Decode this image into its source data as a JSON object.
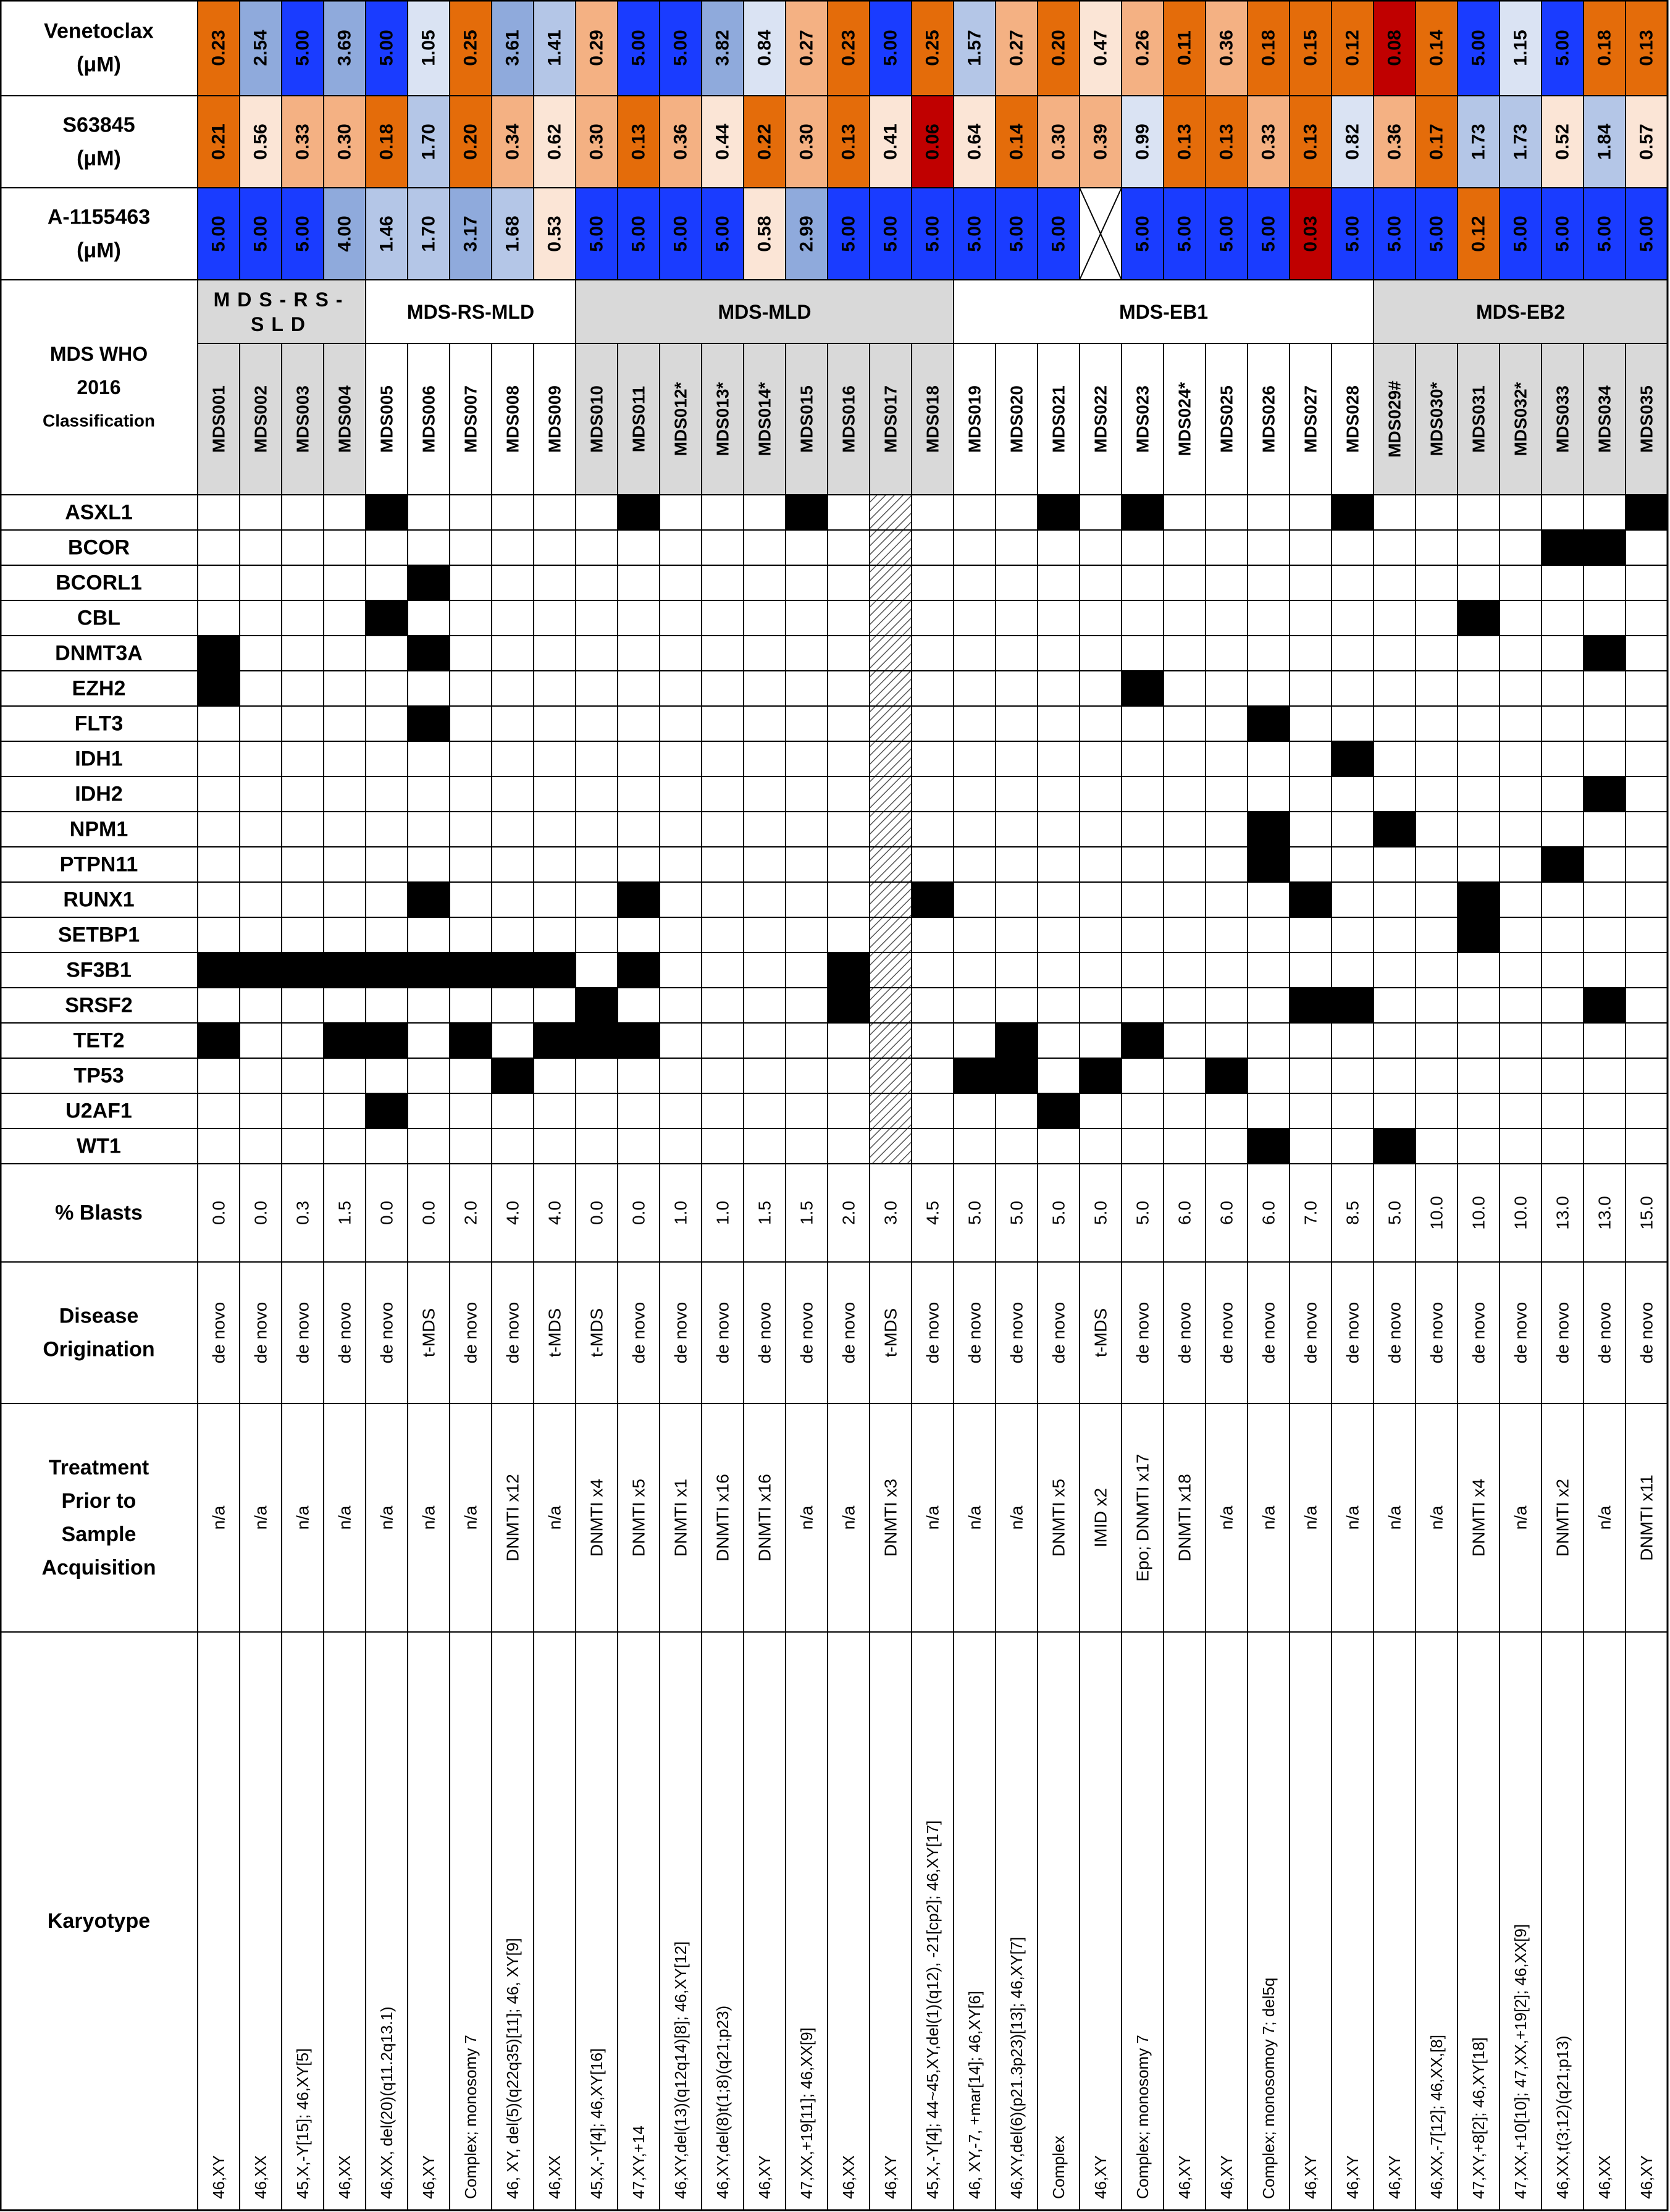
{
  "drugs": [
    {
      "name": "Venetoclax",
      "unit": "(μM)",
      "values": [
        "0.23",
        "2.54",
        "5.00",
        "3.69",
        "5.00",
        "1.05",
        "0.25",
        "3.61",
        "1.41",
        "0.29",
        "5.00",
        "5.00",
        "3.82",
        "0.84",
        "0.27",
        "0.23",
        "5.00",
        "0.25",
        "1.57",
        "0.27",
        "0.20",
        "0.47",
        "0.26",
        "0.11",
        "0.36",
        "0.18",
        "0.15",
        "0.12",
        "0.08",
        "0.14",
        "5.00",
        "1.15",
        "5.00",
        "0.18",
        "0.13"
      ]
    },
    {
      "name": "S63845",
      "unit": "(μM)",
      "values": [
        "0.21",
        "0.56",
        "0.33",
        "0.30",
        "0.18",
        "1.70",
        "0.20",
        "0.34",
        "0.62",
        "0.30",
        "0.13",
        "0.36",
        "0.44",
        "0.22",
        "0.30",
        "0.13",
        "0.41",
        "0.06",
        "0.64",
        "0.14",
        "0.30",
        "0.39",
        "0.99",
        "0.13",
        "0.13",
        "0.33",
        "0.13",
        "0.82",
        "0.36",
        "0.17",
        "1.73",
        "1.73",
        "0.52",
        "1.84",
        "0.57"
      ]
    },
    {
      "name": "A-1155463",
      "unit": "(μM)",
      "values": [
        "5.00",
        "5.00",
        "5.00",
        "4.00",
        "1.46",
        "1.70",
        "3.17",
        "1.68",
        "0.53",
        "5.00",
        "5.00",
        "5.00",
        "5.00",
        "0.58",
        "2.99",
        "5.00",
        "5.00",
        "5.00",
        "5.00",
        "5.00",
        "5.00",
        null,
        "5.00",
        "5.00",
        "5.00",
        "5.00",
        "0.03",
        "5.00",
        "5.00",
        "5.00",
        "0.12",
        "5.00",
        "5.00",
        "5.00",
        "5.00"
      ]
    }
  ],
  "classification": {
    "label_lines": [
      "MDS WHO",
      "2016",
      "Classification"
    ],
    "groups": [
      "MDS-RS-SLD",
      "MDS-RS-MLD",
      "MDS-MLD",
      "MDS-EB1",
      "MDS-EB2"
    ],
    "samples": [
      "MDS001",
      "MDS002",
      "MDS003",
      "MDS004",
      "MDS005",
      "MDS006",
      "MDS007",
      "MDS008",
      "MDS009",
      "MDS010",
      "MDS011",
      "MDS012*",
      "MDS013*",
      "MDS014*",
      "MDS015",
      "MDS016",
      "MDS017",
      "MDS018",
      "MDS019",
      "MDS020",
      "MDS021",
      "MDS022",
      "MDS023",
      "MDS024*",
      "MDS025",
      "MDS026",
      "MDS027",
      "MDS028",
      "MDS029#",
      "MDS030*",
      "MDS031",
      "MDS032*",
      "MDS033",
      "MDS034",
      "MDS035"
    ]
  },
  "genes": [
    {
      "name": "ASXL1",
      "mutated": [
        0,
        0,
        0,
        0,
        1,
        0,
        0,
        0,
        0,
        0,
        1,
        0,
        0,
        0,
        1,
        0,
        null,
        0,
        0,
        0,
        1,
        0,
        1,
        0,
        0,
        0,
        0,
        1,
        0,
        0,
        0,
        0,
        0,
        0,
        1
      ]
    },
    {
      "name": "BCOR",
      "mutated": [
        0,
        0,
        0,
        0,
        0,
        0,
        0,
        0,
        0,
        0,
        0,
        0,
        0,
        0,
        0,
        0,
        null,
        0,
        0,
        0,
        0,
        0,
        0,
        0,
        0,
        0,
        0,
        0,
        0,
        0,
        0,
        0,
        1,
        1,
        0
      ]
    },
    {
      "name": "BCORL1",
      "mutated": [
        0,
        0,
        0,
        0,
        0,
        1,
        0,
        0,
        0,
        0,
        0,
        0,
        0,
        0,
        0,
        0,
        null,
        0,
        0,
        0,
        0,
        0,
        0,
        0,
        0,
        0,
        0,
        0,
        0,
        0,
        0,
        0,
        0,
        0,
        0
      ]
    },
    {
      "name": "CBL",
      "mutated": [
        0,
        0,
        0,
        0,
        1,
        0,
        0,
        0,
        0,
        0,
        0,
        0,
        0,
        0,
        0,
        0,
        null,
        0,
        0,
        0,
        0,
        0,
        0,
        0,
        0,
        0,
        0,
        0,
        0,
        0,
        1,
        0,
        0,
        0,
        0
      ]
    },
    {
      "name": "DNMT3A",
      "mutated": [
        1,
        0,
        0,
        0,
        0,
        1,
        0,
        0,
        0,
        0,
        0,
        0,
        0,
        0,
        0,
        0,
        null,
        0,
        0,
        0,
        0,
        0,
        0,
        0,
        0,
        0,
        0,
        0,
        0,
        0,
        0,
        0,
        0,
        1,
        0
      ]
    },
    {
      "name": "EZH2",
      "mutated": [
        1,
        0,
        0,
        0,
        0,
        0,
        0,
        0,
        0,
        0,
        0,
        0,
        0,
        0,
        0,
        0,
        null,
        0,
        0,
        0,
        0,
        0,
        1,
        0,
        0,
        0,
        0,
        0,
        0,
        0,
        0,
        0,
        0,
        0,
        0
      ]
    },
    {
      "name": "FLT3",
      "mutated": [
        0,
        0,
        0,
        0,
        0,
        1,
        0,
        0,
        0,
        0,
        0,
        0,
        0,
        0,
        0,
        0,
        null,
        0,
        0,
        0,
        0,
        0,
        0,
        0,
        0,
        1,
        0,
        0,
        0,
        0,
        0,
        0,
        0,
        0,
        0
      ]
    },
    {
      "name": "IDH1",
      "mutated": [
        0,
        0,
        0,
        0,
        0,
        0,
        0,
        0,
        0,
        0,
        0,
        0,
        0,
        0,
        0,
        0,
        null,
        0,
        0,
        0,
        0,
        0,
        0,
        0,
        0,
        0,
        0,
        1,
        0,
        0,
        0,
        0,
        0,
        0,
        0
      ]
    },
    {
      "name": "IDH2",
      "mutated": [
        0,
        0,
        0,
        0,
        0,
        0,
        0,
        0,
        0,
        0,
        0,
        0,
        0,
        0,
        0,
        0,
        null,
        0,
        0,
        0,
        0,
        0,
        0,
        0,
        0,
        0,
        0,
        0,
        0,
        0,
        0,
        0,
        0,
        1,
        0
      ]
    },
    {
      "name": "NPM1",
      "mutated": [
        0,
        0,
        0,
        0,
        0,
        0,
        0,
        0,
        0,
        0,
        0,
        0,
        0,
        0,
        0,
        0,
        null,
        0,
        0,
        0,
        0,
        0,
        0,
        0,
        0,
        1,
        0,
        0,
        1,
        0,
        0,
        0,
        0,
        0,
        0
      ]
    },
    {
      "name": "PTPN11",
      "mutated": [
        0,
        0,
        0,
        0,
        0,
        0,
        0,
        0,
        0,
        0,
        0,
        0,
        0,
        0,
        0,
        0,
        null,
        0,
        0,
        0,
        0,
        0,
        0,
        0,
        0,
        1,
        0,
        0,
        0,
        0,
        0,
        0,
        1,
        0,
        0
      ]
    },
    {
      "name": "RUNX1",
      "mutated": [
        0,
        0,
        0,
        0,
        0,
        1,
        0,
        0,
        0,
        0,
        1,
        0,
        0,
        0,
        0,
        0,
        null,
        1,
        0,
        0,
        0,
        0,
        0,
        0,
        0,
        0,
        1,
        0,
        0,
        0,
        1,
        0,
        0,
        0,
        0
      ]
    },
    {
      "name": "SETBP1",
      "mutated": [
        0,
        0,
        0,
        0,
        0,
        0,
        0,
        0,
        0,
        0,
        0,
        0,
        0,
        0,
        0,
        0,
        null,
        0,
        0,
        0,
        0,
        0,
        0,
        0,
        0,
        0,
        0,
        0,
        0,
        0,
        1,
        0,
        0,
        0,
        0
      ]
    },
    {
      "name": "SF3B1",
      "mutated": [
        1,
        1,
        1,
        1,
        1,
        1,
        1,
        1,
        1,
        0,
        1,
        0,
        0,
        0,
        0,
        1,
        null,
        0,
        0,
        0,
        0,
        0,
        0,
        0,
        0,
        0,
        0,
        0,
        0,
        0,
        0,
        0,
        0,
        0,
        0
      ]
    },
    {
      "name": "SRSF2",
      "mutated": [
        0,
        0,
        0,
        0,
        0,
        0,
        0,
        0,
        0,
        1,
        0,
        0,
        0,
        0,
        0,
        1,
        null,
        0,
        0,
        0,
        0,
        0,
        0,
        0,
        0,
        0,
        1,
        1,
        0,
        0,
        0,
        0,
        0,
        1,
        0
      ]
    },
    {
      "name": "TET2",
      "mutated": [
        1,
        0,
        0,
        1,
        1,
        0,
        1,
        0,
        1,
        1,
        1,
        0,
        0,
        0,
        0,
        0,
        null,
        0,
        0,
        1,
        0,
        0,
        1,
        0,
        0,
        0,
        0,
        0,
        0,
        0,
        0,
        0,
        0,
        0,
        0
      ]
    },
    {
      "name": "TP53",
      "mutated": [
        0,
        0,
        0,
        0,
        0,
        0,
        0,
        1,
        0,
        0,
        0,
        0,
        0,
        0,
        0,
        0,
        null,
        0,
        1,
        1,
        0,
        1,
        0,
        0,
        1,
        0,
        0,
        0,
        0,
        0,
        0,
        0,
        0,
        0,
        0
      ]
    },
    {
      "name": "U2AF1",
      "mutated": [
        0,
        0,
        0,
        0,
        1,
        0,
        0,
        0,
        0,
        0,
        0,
        0,
        0,
        0,
        0,
        0,
        null,
        0,
        0,
        0,
        1,
        0,
        0,
        0,
        0,
        0,
        0,
        0,
        0,
        0,
        0,
        0,
        0,
        0,
        0
      ]
    },
    {
      "name": "WT1",
      "mutated": [
        0,
        0,
        0,
        0,
        0,
        0,
        0,
        0,
        0,
        0,
        0,
        0,
        0,
        0,
        0,
        0,
        null,
        0,
        0,
        0,
        0,
        0,
        0,
        0,
        0,
        1,
        0,
        0,
        1,
        0,
        0,
        0,
        0,
        0,
        0
      ]
    }
  ],
  "blasts": {
    "label": "% Blasts",
    "values": [
      "0.0",
      "0.0",
      "0.3",
      "1.5",
      "0.0",
      "0.0",
      "2.0",
      "4.0",
      "4.0",
      "0.0",
      "0.0",
      "1.0",
      "1.0",
      "1.5",
      "1.5",
      "2.0",
      "3.0",
      "4.5",
      "5.0",
      "5.0",
      "5.0",
      "5.0",
      "5.0",
      "6.0",
      "6.0",
      "6.0",
      "7.0",
      "8.5",
      "5.0",
      "10.0",
      "10.0",
      "10.0",
      "13.0",
      "13.0",
      "15.0"
    ]
  },
  "origination": {
    "label_lines": [
      "Disease",
      "Origination"
    ],
    "values": [
      "de novo",
      "de novo",
      "de novo",
      "de novo",
      "de novo",
      "t-MDS",
      "de novo",
      "de novo",
      "t-MDS",
      "t-MDS",
      "de novo",
      "de novo",
      "de novo",
      "de novo",
      "de novo",
      "de novo",
      "t-MDS",
      "de novo",
      "de novo",
      "de novo",
      "de novo",
      "t-MDS",
      "de novo",
      "de novo",
      "de novo",
      "de novo",
      "de novo",
      "de novo",
      "de novo",
      "de novo",
      "de novo",
      "de novo",
      "de novo",
      "de novo",
      "de novo"
    ]
  },
  "treatment": {
    "label_lines": [
      "Treatment",
      "Prior to",
      "Sample",
      "Acquisition"
    ],
    "values": [
      "n/a",
      "n/a",
      "n/a",
      "n/a",
      "n/a",
      "n/a",
      "n/a",
      "DNMTI x12",
      "n/a",
      "DNMTI x4",
      "DNMTI x5",
      "DNMTI x1",
      "DNMTI x16",
      "DNMTI x16",
      "n/a",
      "n/a",
      "DNMTI x3",
      "n/a",
      "n/a",
      "n/a",
      "DNMTI x5",
      "IMID x2",
      "Epo; DNMTI x17",
      "DNMTI x18",
      "n/a",
      "n/a",
      "n/a",
      "n/a",
      "n/a",
      "n/a",
      "DNMTI x4",
      "n/a",
      "DNMTI x2",
      "n/a",
      "DNMTI x11"
    ]
  },
  "karyotype": {
    "label": "Karyotype",
    "values": [
      "46,XY",
      "46,XX",
      "45,X,-Y[15]; 46,XY[5]",
      "46,XX",
      "46,XX, del(20)(q11.2q13.1)",
      "46,XY",
      "Complex; monosomy 7",
      "46, XY, del(5)(q22q35)[11]; 46, XY[9]",
      "46,XX",
      "45,X,-Y[4]; 46,XY[16]",
      "47,XY,+14",
      "46,XY,del(13)(q12q14)[8]; 46,XY[12]",
      "46,XY,del(8)t(1;8)(q21;p23)",
      "46,XY",
      "47,XX,+19[11]; 46,XX[9]",
      "46,XX",
      "46,XY",
      "45,X,-Y[4]; 44~45,XY,del(1)(q12), -21[cp2]; 46,XY[17]",
      "46, XY,-7, +mar[14]; 46,XY[6]",
      "46,XY,del(6)(p21.3p23)[13]; 46,XY[7]",
      "Complex",
      "46,XY",
      "Complex; monosomy 7",
      "46,XY",
      "46,XY",
      "Complex; monosomoy 7; del5q",
      "46,XY",
      "46,XY",
      "46,XY",
      "46,XX,-7[12]; 46,XX,[8]",
      "47,XY,+8[2]; 46,XY[18]",
      "47,XX,+10[10]; 47,XX,+19[2]; 46,XX[9]",
      "46,XX,t(3;12)(q21;p13)",
      "46,XX",
      "46,XY"
    ]
  }
}
